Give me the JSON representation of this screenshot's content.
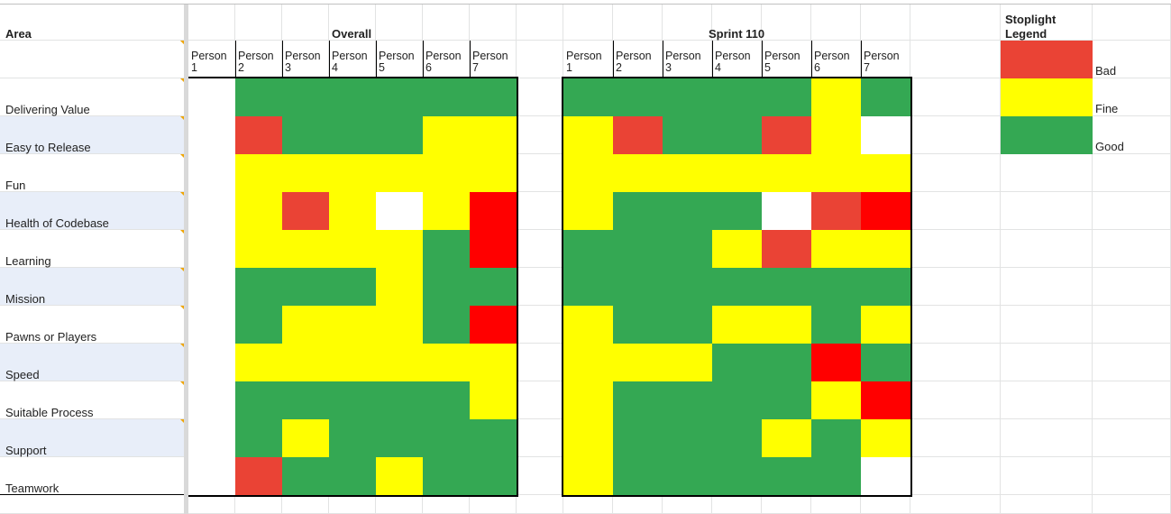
{
  "colors": {
    "G": "#34a853",
    "Y": "#ffff00",
    "R": "#ea4335",
    "D": "#ff0000",
    "W": "#ffffff",
    "band": "#e8eef9",
    "grid": "#e2e3e3"
  },
  "header": {
    "area_label": "Area",
    "overall_label": "Overall",
    "sprint_label": "Sprint 110",
    "legend_title_line1": "Stoplight",
    "legend_title_line2": "Legend"
  },
  "persons": [
    {
      "word": "Person",
      "num": "1"
    },
    {
      "word": "Person",
      "num": "2"
    },
    {
      "word": "Person",
      "num": "3"
    },
    {
      "word": "Person",
      "num": "4"
    },
    {
      "word": "Person",
      "num": "5"
    },
    {
      "word": "Person",
      "num": "6"
    },
    {
      "word": "Person",
      "num": "7"
    }
  ],
  "areas": [
    "Delivering Value",
    "Easy to Release",
    "Fun",
    "Health of Codebase",
    "Learning",
    "Mission",
    "Pawns or Players",
    "Speed",
    "Suitable Process",
    "Support",
    "Teamwork"
  ],
  "overall": [
    [
      "W",
      "G",
      "G",
      "G",
      "G",
      "G",
      "G"
    ],
    [
      "W",
      "R",
      "G",
      "G",
      "G",
      "Y",
      "Y"
    ],
    [
      "W",
      "Y",
      "Y",
      "Y",
      "Y",
      "Y",
      "Y"
    ],
    [
      "W",
      "Y",
      "R",
      "Y",
      "W",
      "Y",
      "D"
    ],
    [
      "W",
      "Y",
      "Y",
      "Y",
      "Y",
      "G",
      "D"
    ],
    [
      "W",
      "G",
      "G",
      "G",
      "Y",
      "G",
      "G"
    ],
    [
      "W",
      "G",
      "Y",
      "Y",
      "Y",
      "G",
      "D"
    ],
    [
      "W",
      "Y",
      "Y",
      "Y",
      "Y",
      "Y",
      "Y"
    ],
    [
      "W",
      "G",
      "G",
      "G",
      "G",
      "G",
      "Y"
    ],
    [
      "W",
      "G",
      "Y",
      "G",
      "G",
      "G",
      "G"
    ],
    [
      "W",
      "R",
      "G",
      "G",
      "Y",
      "G",
      "G"
    ]
  ],
  "sprint": [
    [
      "G",
      "G",
      "G",
      "G",
      "G",
      "Y",
      "G"
    ],
    [
      "Y",
      "R",
      "G",
      "G",
      "R",
      "Y",
      "W"
    ],
    [
      "Y",
      "Y",
      "Y",
      "Y",
      "Y",
      "Y",
      "Y"
    ],
    [
      "Y",
      "G",
      "G",
      "G",
      "W",
      "R",
      "D"
    ],
    [
      "G",
      "G",
      "G",
      "Y",
      "R",
      "Y",
      "Y"
    ],
    [
      "G",
      "G",
      "G",
      "G",
      "G",
      "G",
      "G"
    ],
    [
      "Y",
      "G",
      "G",
      "Y",
      "Y",
      "G",
      "Y"
    ],
    [
      "Y",
      "Y",
      "Y",
      "G",
      "G",
      "D",
      "G"
    ],
    [
      "Y",
      "G",
      "G",
      "G",
      "G",
      "Y",
      "D"
    ],
    [
      "Y",
      "G",
      "G",
      "G",
      "Y",
      "G",
      "Y"
    ],
    [
      "Y",
      "G",
      "G",
      "G",
      "G",
      "G",
      "W"
    ]
  ],
  "legend": [
    {
      "label": "Bad",
      "color": "R"
    },
    {
      "label": "Fine",
      "color": "Y"
    },
    {
      "label": "Good",
      "color": "G"
    }
  ]
}
